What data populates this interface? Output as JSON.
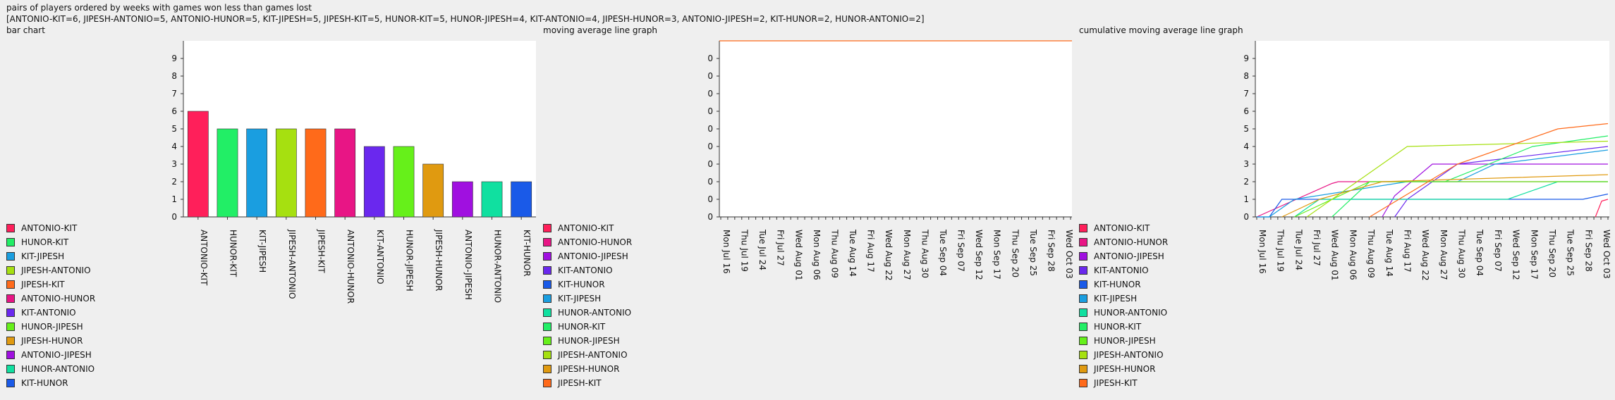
{
  "page": {
    "title": "pairs of players ordered by weeks with games won less than games lost",
    "summary": "[ANTONIO-KIT=6, JIPESH-ANTONIO=5, ANTONIO-HUNOR=5, KIT-JIPESH=5, JIPESH-KIT=5, HUNOR-KIT=5, HUNOR-JIPESH=4, KIT-ANTONIO=4, JIPESH-HUNOR=3, ANTONIO-JIPESH=2, KIT-HUNOR=2, HUNOR-ANTONIO=2]"
  },
  "colors": {
    "ANTONIO-KIT": "#ff1f5a",
    "HUNOR-KIT": "#22ee66",
    "KIT-JIPESH": "#1a9ee0",
    "JIPESH-ANTONIO": "#a6e010",
    "JIPESH-KIT": "#ff6a1a",
    "ANTONIO-HUNOR": "#e81585",
    "KIT-ANTONIO": "#6a28ee",
    "HUNOR-JIPESH": "#66f01a",
    "JIPESH-HUNOR": "#e09a10",
    "ANTONIO-JIPESH": "#a010e0",
    "HUNOR-ANTONIO": "#10e0a0",
    "KIT-HUNOR": "#1a5ae8"
  },
  "chart_data": [
    {
      "type": "bar",
      "title": "bar chart",
      "categories": [
        "ANTONIO-KIT",
        "HUNOR-KIT",
        "KIT-JIPESH",
        "JIPESH-ANTONIO",
        "JIPESH-KIT",
        "ANTONIO-HUNOR",
        "KIT-ANTONIO",
        "HUNOR-JIPESH",
        "JIPESH-HUNOR",
        "ANTONIO-JIPESH",
        "HUNOR-ANTONIO",
        "KIT-HUNOR"
      ],
      "values": [
        6,
        5,
        5,
        5,
        5,
        5,
        4,
        4,
        3,
        2,
        2,
        2
      ],
      "ylim": [
        0,
        10
      ],
      "yticks": [
        "0",
        "1",
        "2",
        "3",
        "4",
        "5",
        "6",
        "7",
        "8",
        "9"
      ],
      "legend": [
        "ANTONIO-KIT",
        "HUNOR-KIT",
        "KIT-JIPESH",
        "JIPESH-ANTONIO",
        "JIPESH-KIT",
        "ANTONIO-HUNOR",
        "KIT-ANTONIO",
        "HUNOR-JIPESH",
        "JIPESH-HUNOR",
        "ANTONIO-JIPESH",
        "HUNOR-ANTONIO",
        "KIT-HUNOR"
      ]
    },
    {
      "type": "line",
      "title": "moving average line graph",
      "yticks": [
        "0",
        "0",
        "0",
        "0",
        "0",
        "0",
        "0",
        "0",
        "0",
        "0"
      ],
      "date_labels": [
        "Mon Jul 16",
        "Thu Jul 19",
        "Tue Jul 24",
        "Fri Jul 27",
        "Wed Aug 01",
        "Mon Aug 06",
        "Thu Aug 09",
        "Tue Aug 14",
        "Fri Aug 17",
        "Wed Aug 22",
        "Mon Aug 27",
        "Thu Aug 30",
        "Tue Sep 04",
        "Fri Sep 07",
        "Wed Sep 12",
        "Mon Sep 17",
        "Thu Sep 20",
        "Tue Sep 25",
        "Fri Sep 28",
        "Wed Oct 03"
      ],
      "series": [
        {
          "name": "JIPESH-KIT",
          "values": [
            0,
            0,
            0,
            0,
            0,
            0,
            0,
            0,
            0,
            0,
            0,
            0,
            0,
            0,
            0,
            0,
            0,
            0,
            0,
            0
          ]
        }
      ],
      "legend": [
        "ANTONIO-KIT",
        "ANTONIO-HUNOR",
        "ANTONIO-JIPESH",
        "KIT-ANTONIO",
        "KIT-HUNOR",
        "KIT-JIPESH",
        "HUNOR-ANTONIO",
        "HUNOR-KIT",
        "HUNOR-JIPESH",
        "JIPESH-ANTONIO",
        "JIPESH-HUNOR",
        "JIPESH-KIT"
      ]
    },
    {
      "type": "line",
      "title": "cumulative moving average line graph",
      "yticks": [
        "0",
        "1",
        "2",
        "3",
        "4",
        "5",
        "6",
        "7",
        "8",
        "9"
      ],
      "ylim": [
        0,
        10
      ],
      "date_labels": [
        "Mon Jul 16",
        "Thu Jul 19",
        "Tue Jul 24",
        "Fri Jul 27",
        "Wed Aug 01",
        "Mon Aug 06",
        "Thu Aug 09",
        "Tue Aug 14",
        "Fri Aug 17",
        "Wed Aug 22",
        "Mon Aug 27",
        "Thu Aug 30",
        "Tue Sep 04",
        "Fri Sep 07",
        "Wed Sep 12",
        "Mon Sep 17",
        "Thu Sep 20",
        "Tue Sep 25",
        "Fri Sep 28",
        "Wed Oct 03"
      ],
      "series": [
        {
          "name": "ANTONIO-KIT",
          "points": [
            [
              27,
              0
            ],
            [
              27.5,
              0.9
            ],
            [
              28,
              1
            ]
          ]
        },
        {
          "name": "ANTONIO-HUNOR",
          "points": [
            [
              0,
              0
            ],
            [
              6,
              1.9
            ],
            [
              6.5,
              2
            ],
            [
              28,
              2
            ]
          ]
        },
        {
          "name": "ANTONIO-JIPESH",
          "points": [
            [
              10,
              0
            ],
            [
              11,
              1.2
            ],
            [
              14,
              3
            ],
            [
              28,
              3
            ]
          ]
        },
        {
          "name": "KIT-ANTONIO",
          "points": [
            [
              11,
              0
            ],
            [
              12,
              1
            ],
            [
              16,
              3
            ],
            [
              28,
              4
            ]
          ]
        },
        {
          "name": "KIT-HUNOR",
          "points": [
            [
              0,
              0
            ],
            [
              1,
              0
            ],
            [
              2,
              1
            ],
            [
              26,
              1
            ],
            [
              28,
              1.3
            ]
          ]
        },
        {
          "name": "KIT-JIPESH",
          "points": [
            [
              0,
              0
            ],
            [
              1,
              0
            ],
            [
              3,
              1
            ],
            [
              12,
              2
            ],
            [
              16,
              2
            ],
            [
              19,
              3
            ],
            [
              28,
              3.8
            ]
          ]
        },
        {
          "name": "HUNOR-ANTONIO",
          "points": [
            [
              3,
              0
            ],
            [
              5,
              1
            ],
            [
              20,
              1
            ],
            [
              24,
              2
            ],
            [
              28,
              2
            ]
          ]
        },
        {
          "name": "HUNOR-KIT",
          "points": [
            [
              6,
              0
            ],
            [
              9,
              2
            ],
            [
              15,
              2
            ],
            [
              22,
              4
            ],
            [
              28,
              4.6
            ]
          ]
        },
        {
          "name": "HUNOR-JIPESH",
          "points": [
            [
              3,
              0
            ],
            [
              9,
              2
            ],
            [
              28,
              2
            ]
          ]
        },
        {
          "name": "JIPESH-ANTONIO",
          "points": [
            [
              4,
              0
            ],
            [
              12,
              4
            ],
            [
              28,
              4.3
            ]
          ]
        },
        {
          "name": "JIPESH-HUNOR",
          "points": [
            [
              2,
              0
            ],
            [
              5,
              1
            ],
            [
              10,
              2
            ],
            [
              28,
              2.4
            ]
          ]
        },
        {
          "name": "JIPESH-KIT",
          "points": [
            [
              9,
              0
            ],
            [
              16,
              3
            ],
            [
              24,
              5
            ],
            [
              28,
              5.3
            ]
          ]
        }
      ],
      "legend": [
        "ANTONIO-KIT",
        "ANTONIO-HUNOR",
        "ANTONIO-JIPESH",
        "KIT-ANTONIO",
        "KIT-HUNOR",
        "KIT-JIPESH",
        "HUNOR-ANTONIO",
        "HUNOR-KIT",
        "HUNOR-JIPESH",
        "JIPESH-ANTONIO",
        "JIPESH-HUNOR",
        "JIPESH-KIT"
      ]
    }
  ]
}
